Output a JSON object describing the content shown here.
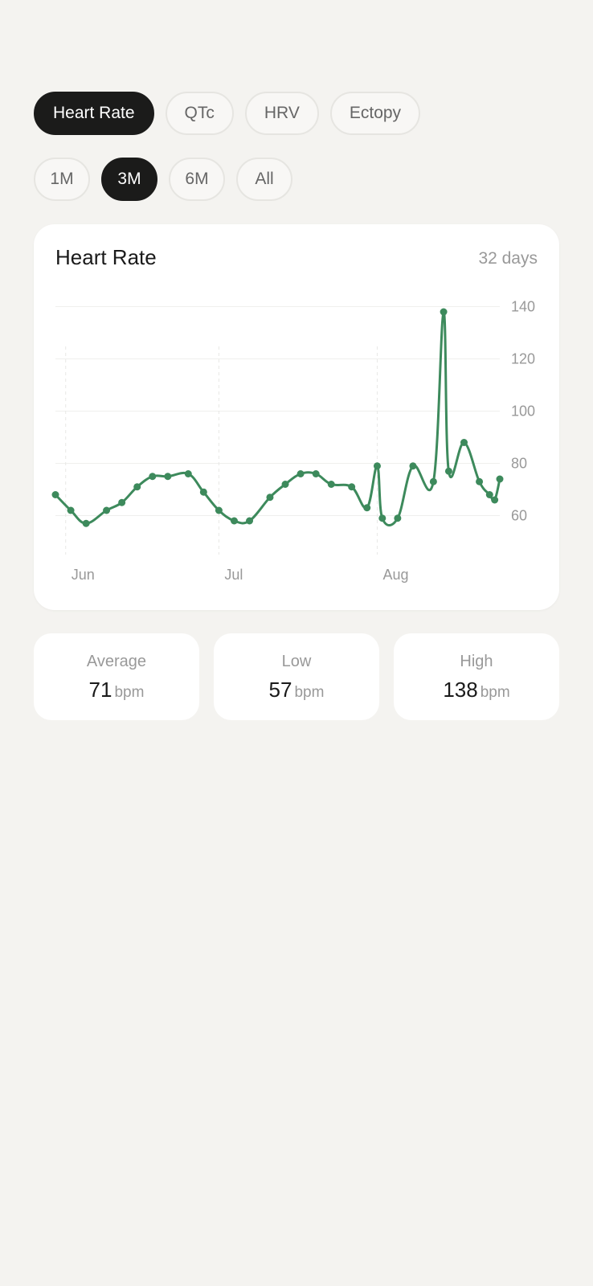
{
  "metric_tabs": [
    {
      "label": "Heart Rate",
      "active": true
    },
    {
      "label": "QTc",
      "active": false
    },
    {
      "label": "HRV",
      "active": false
    },
    {
      "label": "Ectopy",
      "active": false
    }
  ],
  "range_tabs": [
    {
      "label": "1M",
      "active": false
    },
    {
      "label": "3M",
      "active": true
    },
    {
      "label": "6M",
      "active": false
    },
    {
      "label": "All",
      "active": false
    }
  ],
  "card": {
    "title": "Heart Rate",
    "days": "32 days"
  },
  "stats": {
    "average": {
      "label": "Average",
      "value": "71",
      "unit": "bpm"
    },
    "low": {
      "label": "Low",
      "value": "57",
      "unit": "bpm"
    },
    "high": {
      "label": "High",
      "value": "138",
      "unit": "bpm"
    }
  },
  "colors": {
    "line": "#3d8a5c",
    "active_pill": "#1b1b1a"
  },
  "chart_data": {
    "type": "line",
    "title": "Heart Rate",
    "xlabel": "",
    "ylabel": "",
    "y_ticks": [
      60,
      80,
      100,
      120,
      140
    ],
    "x_ticks": [
      {
        "label": "Jun",
        "date": "2024-06-01"
      },
      {
        "label": "Jul",
        "date": "2024-07-01"
      },
      {
        "label": "Aug",
        "date": "2024-08-01"
      }
    ],
    "xlim": [
      "2024-05-30",
      "2024-08-25"
    ],
    "ylim": [
      46,
      150
    ],
    "grid": true,
    "series": [
      {
        "points": [
          {
            "x": "2024-05-30",
            "y": 68
          },
          {
            "x": "2024-06-02",
            "y": 62
          },
          {
            "x": "2024-06-05",
            "y": 57
          },
          {
            "x": "2024-06-09",
            "y": 62
          },
          {
            "x": "2024-06-12",
            "y": 65
          },
          {
            "x": "2024-06-15",
            "y": 71
          },
          {
            "x": "2024-06-18",
            "y": 75
          },
          {
            "x": "2024-06-21",
            "y": 75
          },
          {
            "x": "2024-06-25",
            "y": 76
          },
          {
            "x": "2024-06-28",
            "y": 69
          },
          {
            "x": "2024-07-01",
            "y": 62
          },
          {
            "x": "2024-07-04",
            "y": 58
          },
          {
            "x": "2024-07-07",
            "y": 58
          },
          {
            "x": "2024-07-11",
            "y": 67
          },
          {
            "x": "2024-07-14",
            "y": 72
          },
          {
            "x": "2024-07-17",
            "y": 76
          },
          {
            "x": "2024-07-20",
            "y": 76
          },
          {
            "x": "2024-07-23",
            "y": 72
          },
          {
            "x": "2024-07-27",
            "y": 71
          },
          {
            "x": "2024-07-30",
            "y": 63
          },
          {
            "x": "2024-08-01",
            "y": 79
          },
          {
            "x": "2024-08-02",
            "y": 59
          },
          {
            "x": "2024-08-05",
            "y": 59
          },
          {
            "x": "2024-08-08",
            "y": 79
          },
          {
            "x": "2024-08-12",
            "y": 73
          },
          {
            "x": "2024-08-14",
            "y": 138
          },
          {
            "x": "2024-08-15",
            "y": 77
          },
          {
            "x": "2024-08-18",
            "y": 88
          },
          {
            "x": "2024-08-21",
            "y": 73
          },
          {
            "x": "2024-08-23",
            "y": 68
          },
          {
            "x": "2024-08-24",
            "y": 66
          },
          {
            "x": "2024-08-25",
            "y": 74
          }
        ]
      }
    ]
  }
}
